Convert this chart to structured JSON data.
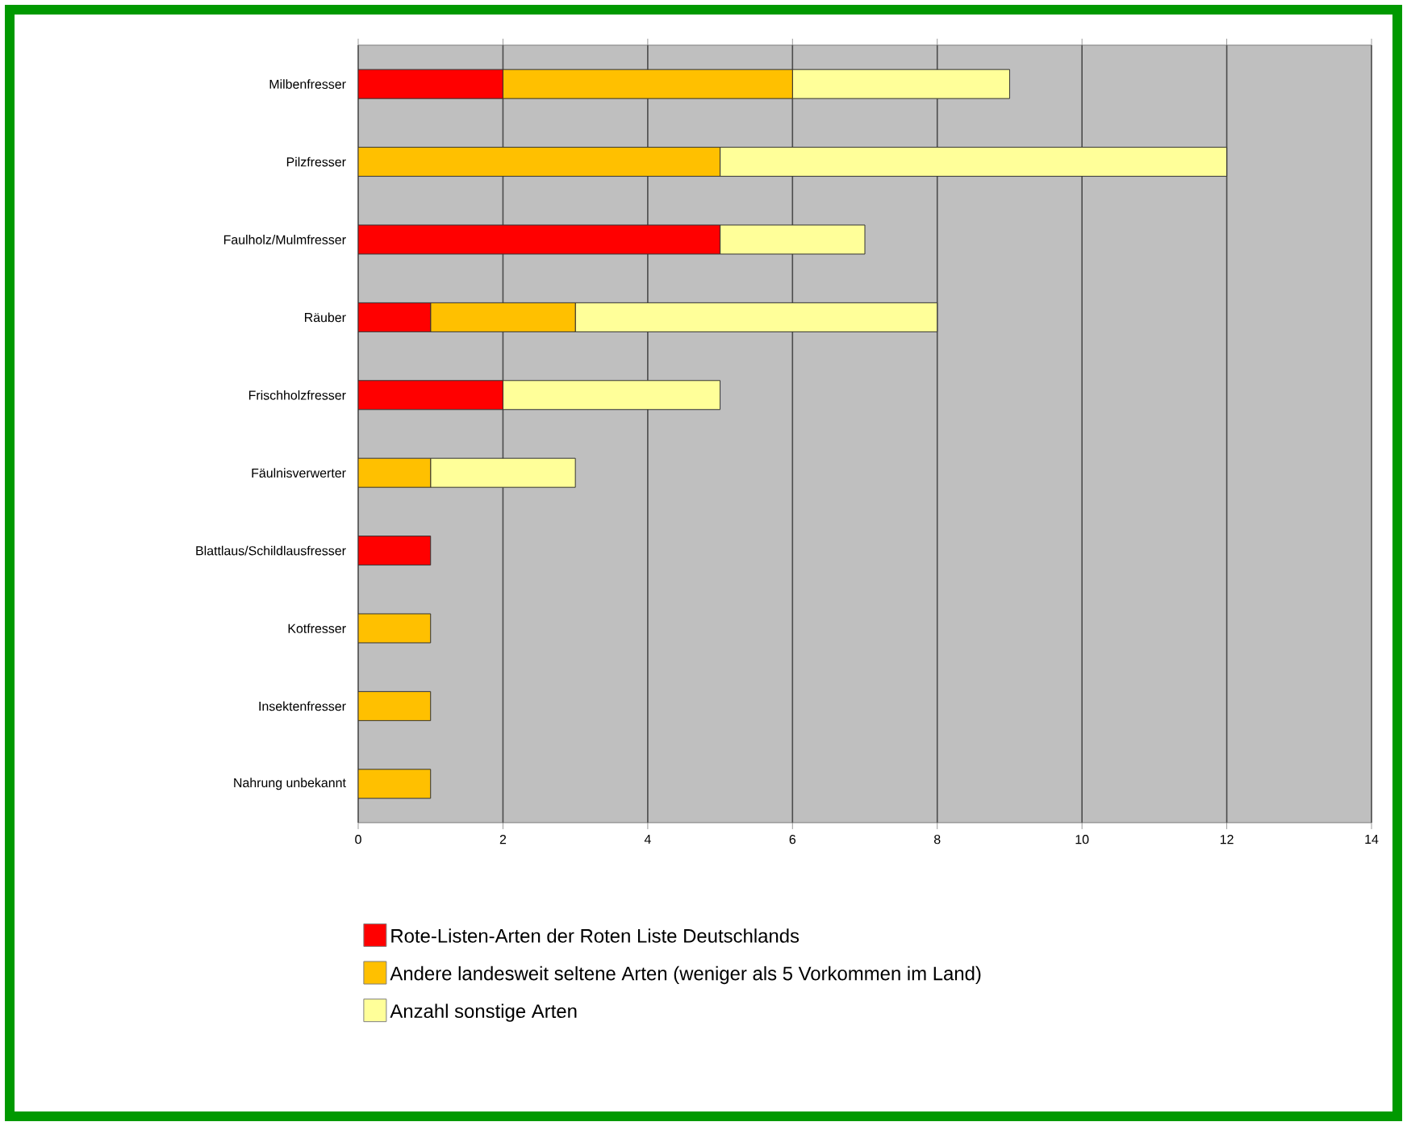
{
  "chart_data": {
    "type": "bar",
    "orientation": "horizontal",
    "stacked": true,
    "categories": [
      "Milbenfresser",
      "Pilzfresser",
      "Faulholz/Mulmfresser",
      "Räuber",
      "Frischholzfresser",
      "Fäulnisverwerter",
      "Blattlaus/Schildlausfresser",
      "Kotfresser",
      "Insektenfresser",
      "Nahrung unbekannt"
    ],
    "series": [
      {
        "name": "Rote-Listen-Arten der Roten Liste Deutschlands",
        "color": "#ff0000",
        "values": [
          2,
          0,
          5,
          1,
          2,
          0,
          1,
          0,
          0,
          0
        ]
      },
      {
        "name": "Andere landesweit seltene Arten (weniger als 5 Vorkommen im Land)",
        "color": "#ffc000",
        "values": [
          4,
          5,
          0,
          2,
          0,
          1,
          0,
          1,
          1,
          1
        ]
      },
      {
        "name": "Anzahl sonstige Arten",
        "color": "#ffff99",
        "values": [
          3,
          7,
          2,
          5,
          3,
          2,
          0,
          0,
          0,
          0
        ]
      }
    ],
    "xlim": [
      0,
      14
    ],
    "xticks": [
      0,
      2,
      4,
      6,
      8,
      10,
      12,
      14
    ],
    "grid": "x",
    "legend": "bottom"
  }
}
